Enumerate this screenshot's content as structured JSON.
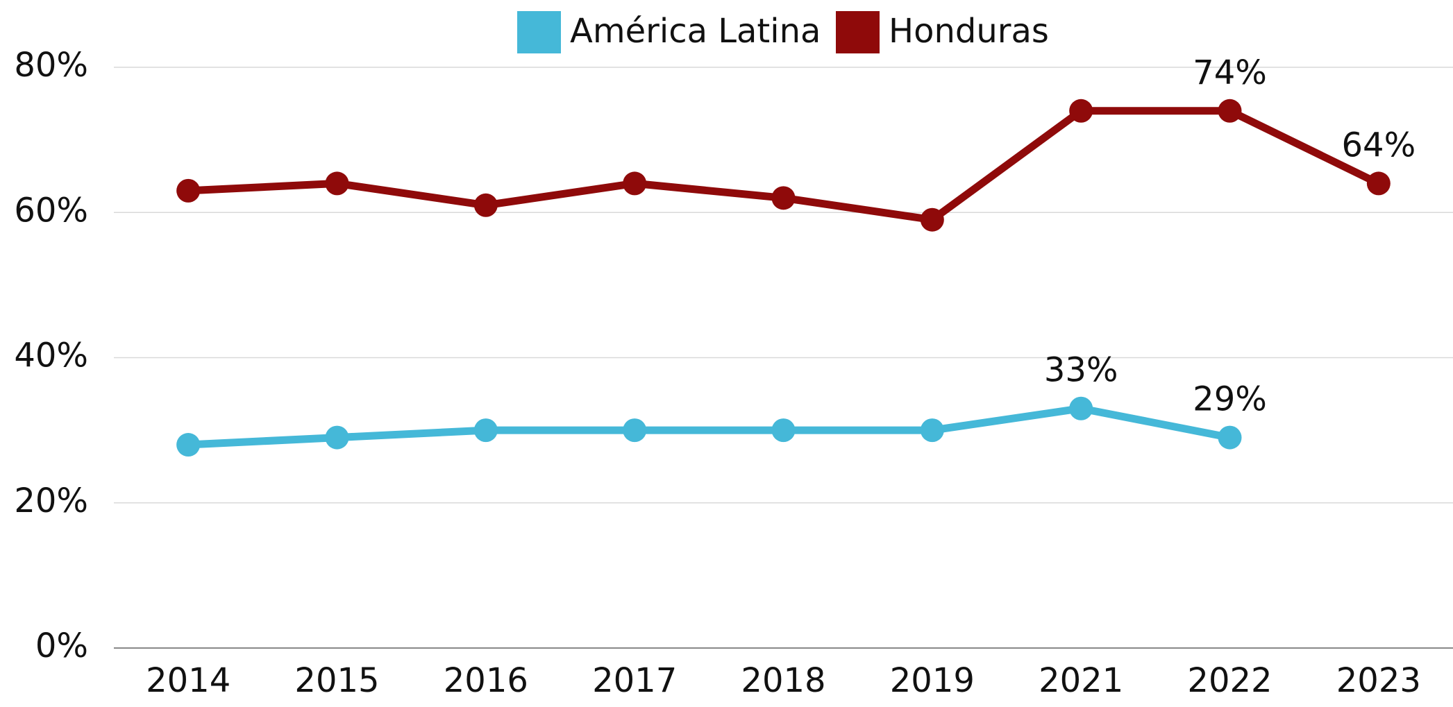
{
  "chart_data": {
    "type": "line",
    "categories": [
      "2014",
      "2015",
      "2016",
      "2017",
      "2018",
      "2019",
      "2021",
      "2022",
      "2023"
    ],
    "series": [
      {
        "name": "América Latina",
        "color": "#45b8d8",
        "values": [
          28,
          29,
          30,
          30,
          30,
          30,
          33,
          29,
          null
        ],
        "value_labels": [
          null,
          null,
          null,
          null,
          null,
          null,
          "33%",
          "29%",
          null
        ]
      },
      {
        "name": "Honduras",
        "color": "#8f0a0a",
        "values": [
          63,
          64,
          61,
          64,
          62,
          59,
          74,
          74,
          64
        ],
        "value_labels": [
          null,
          null,
          null,
          null,
          null,
          null,
          null,
          "74%",
          "64%"
        ]
      }
    ],
    "ylim": [
      0,
      80
    ],
    "yticks": [
      {
        "value": 0,
        "label": "0%"
      },
      {
        "value": 20,
        "label": "20%"
      },
      {
        "value": 40,
        "label": "40%"
      },
      {
        "value": 60,
        "label": "60%"
      },
      {
        "value": 80,
        "label": "80%"
      }
    ],
    "grid": true,
    "legend": "top"
  }
}
